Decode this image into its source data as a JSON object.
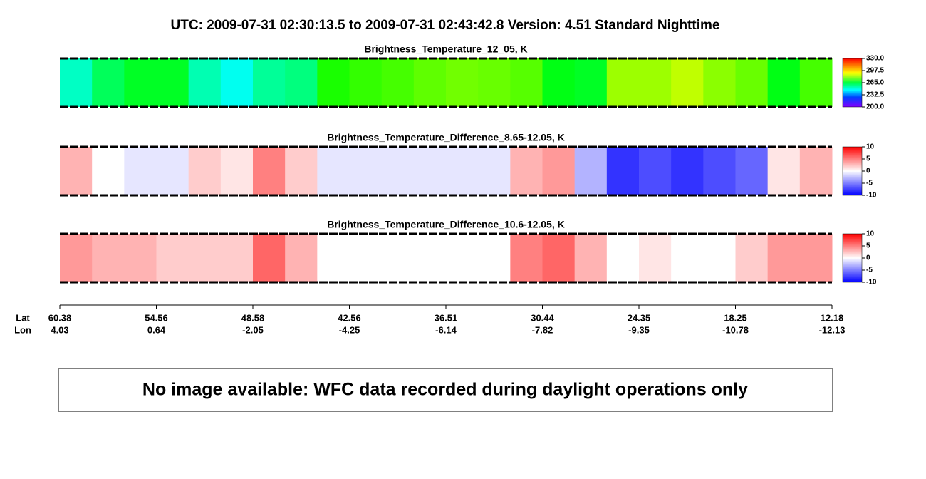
{
  "title": "UTC:  2009-07-31   02:30:13.5  to  2009-07-31   02:43:42.8    Version: 4.51  Standard Nighttime",
  "chart_data": [
    {
      "type": "heatmap",
      "title": "Brightness_Temperature_12_05, K",
      "colormap": "rainbow",
      "clim": [
        200,
        330
      ],
      "cticks": [
        {
          "value": 200,
          "label": "200.0"
        },
        232.5,
        {
          "value": 265,
          "label": "265.0"
        },
        297.5,
        {
          "value": 330,
          "label": "330.0"
        }
      ],
      "values": [
        250,
        262,
        268,
        268,
        252,
        245,
        255,
        258,
        275,
        278,
        280,
        283,
        285,
        284,
        282,
        270,
        268,
        290,
        290,
        294,
        288,
        284,
        270,
        280
      ]
    },
    {
      "type": "heatmap",
      "title": "Brightness_Temperature_Difference_8.65-12.05, K",
      "colormap": "bwr",
      "clim": [
        -10,
        10
      ],
      "cticks": [
        -10,
        -5,
        0,
        5,
        10
      ],
      "values": [
        3,
        0,
        -1,
        -1,
        2,
        1,
        5,
        2,
        -1,
        -1,
        -1,
        -1,
        -1,
        -1,
        3,
        4,
        -3,
        -8,
        -7,
        -8,
        -7,
        -6,
        1,
        3
      ]
    },
    {
      "type": "heatmap",
      "title": "Brightness_Temperature_Difference_10.6-12.05, K",
      "colormap": "bwr",
      "clim": [
        -10,
        10
      ],
      "cticks": [
        -10,
        -5,
        0,
        5,
        10
      ],
      "values": [
        4,
        3,
        3,
        2,
        2,
        2,
        6,
        3,
        0,
        0,
        0,
        0,
        0,
        0,
        5,
        6,
        3,
        0,
        1,
        0,
        0,
        2,
        4,
        4
      ]
    }
  ],
  "x_axis": {
    "lat_label": "Lat",
    "lon_label": "Lon",
    "lat": [
      60.38,
      54.56,
      48.58,
      42.56,
      36.51,
      30.44,
      24.35,
      18.25,
      12.18
    ],
    "lon": [
      4.03,
      0.64,
      -2.05,
      -4.25,
      -6.14,
      -7.82,
      -9.35,
      -10.78,
      -12.13
    ]
  },
  "notice": "No image available: WFC data recorded during daylight operations only"
}
